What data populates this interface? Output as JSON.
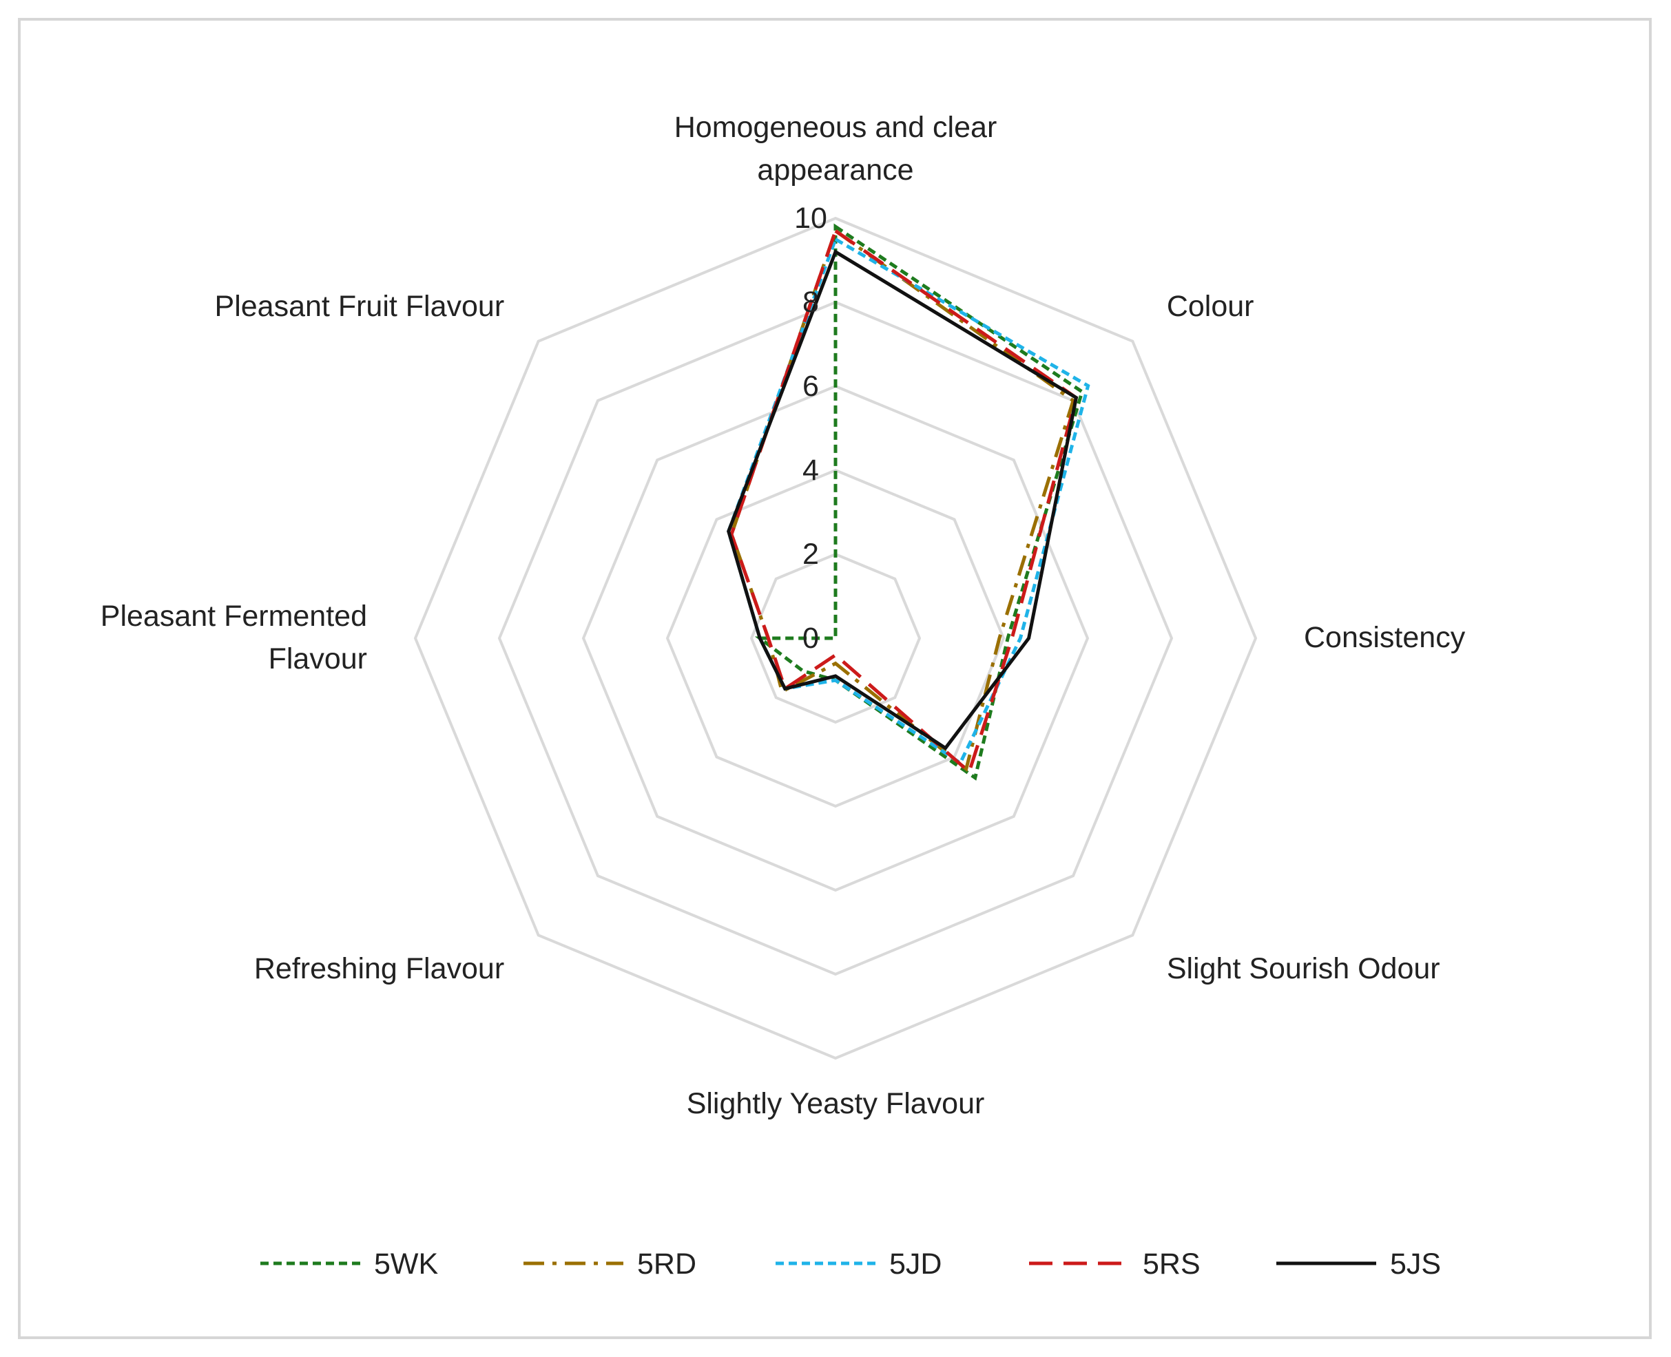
{
  "chart_data": {
    "type": "radar",
    "axes": [
      "Homogeneous and clear appearance",
      "Colour",
      "Consistency",
      "Slight Sourish Odour",
      "Slightly Yeasty Flavour",
      "Refreshing Flavour",
      "Pleasant Fermented Flavour",
      "Pleasant Fruit Flavour"
    ],
    "axis_label_lines": [
      [
        "Homogeneous and clear",
        "appearance"
      ],
      [
        "Colour"
      ],
      [
        "Consistency"
      ],
      [
        "Slight Sourish Odour"
      ],
      [
        "Slightly Yeasty Flavour"
      ],
      [
        "Refreshing Flavour"
      ],
      [
        "Pleasant Fermented",
        "Flavour"
      ],
      [
        "Pleasant Fruit Flavour"
      ]
    ],
    "range": [
      0,
      10
    ],
    "ticks": [
      "0",
      "2",
      "4",
      "6",
      "8",
      "10"
    ],
    "grid": true,
    "legend_position": "bottom",
    "series": [
      {
        "name": "5WK",
        "color": "#1e7b1e",
        "dash": "short-dash",
        "values": [
          9.8,
          8.3,
          4.1,
          4.7,
          1.0,
          1.1,
          1.8,
          0.0
        ]
      },
      {
        "name": "5RD",
        "color": "#9a6f00",
        "dash": "dash-dot",
        "values": [
          9.7,
          8.0,
          3.9,
          4.4,
          0.6,
          1.8,
          1.6,
          3.5
        ]
      },
      {
        "name": "5JD",
        "color": "#1fb3e8",
        "dash": "short-dash",
        "values": [
          9.5,
          8.5,
          4.4,
          4.2,
          1.0,
          1.7,
          1.8,
          3.6
        ]
      },
      {
        "name": "5RS",
        "color": "#cc1a1a",
        "dash": "long-dash",
        "values": [
          9.7,
          8.1,
          4.2,
          4.5,
          0.4,
          1.7,
          1.6,
          3.5
        ]
      },
      {
        "name": "5JS",
        "color": "#111111",
        "dash": "solid",
        "values": [
          9.2,
          8.1,
          4.6,
          3.7,
          0.9,
          1.7,
          1.8,
          3.6
        ]
      }
    ]
  }
}
